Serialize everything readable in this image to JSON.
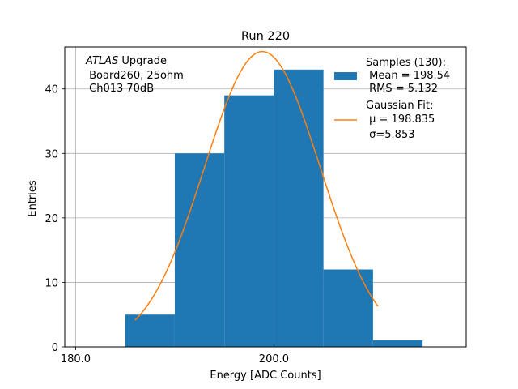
{
  "chart_data": {
    "type": "bar",
    "title": "Run 220",
    "xlabel": "Energy [ADC Counts]",
    "ylabel": "Entries",
    "xlim": [
      178.9,
      219.4
    ],
    "ylim": [
      0,
      46.5
    ],
    "xticks": [
      180.0,
      200.0
    ],
    "xtick_labels": [
      "180.0",
      "200.0"
    ],
    "yticks": [
      0,
      10,
      20,
      30,
      40
    ],
    "ytick_labels": [
      "0",
      "10",
      "20",
      "30",
      "40"
    ],
    "grid": true,
    "histogram": {
      "bin_edges": [
        185,
        190,
        195,
        200,
        205,
        210,
        215
      ],
      "counts": [
        5,
        30,
        39,
        43,
        12,
        1
      ],
      "color": "#1f77b4"
    },
    "fit": {
      "type": "gaussian",
      "mu": 198.835,
      "sigma": 5.853,
      "amplitude": 45.8,
      "x_range": [
        186,
        210.5
      ],
      "color": "#ff7f0e"
    },
    "annotation": {
      "line1_italic": "ATLAS",
      "line1_rest": " Upgrade",
      "line2": " Board260, 25ohm",
      "line3": " Ch013 70dB"
    },
    "legend": {
      "placement": "top-right",
      "samples_lines": [
        "Samples (130):",
        " Mean = 198.54",
        " RMS = 5.132"
      ],
      "fit_lines": [
        "Gaussian Fit:",
        " μ = 198.835",
        " σ=5.853"
      ]
    }
  }
}
